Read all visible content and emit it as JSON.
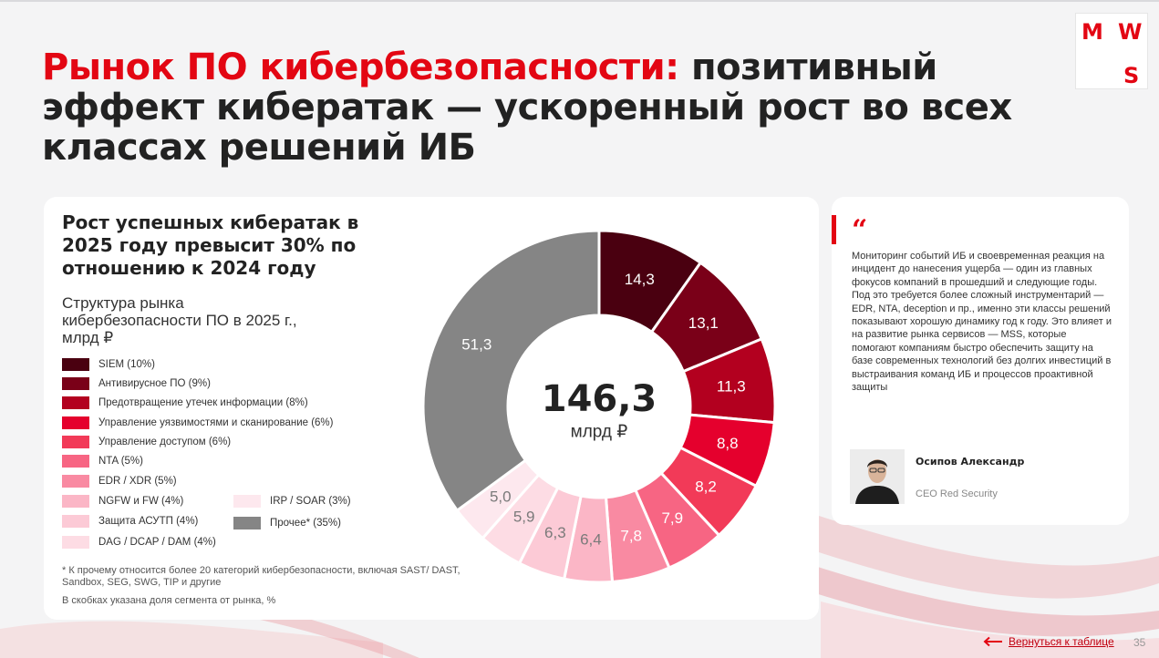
{
  "slide": {
    "title_accent": "Рынок ПО кибербезопасности:",
    "title_rest": " позитивный эффект кибератак — ускоренный рост во всех классах решений ИБ",
    "logo": {
      "letters": [
        "M",
        "W",
        "S"
      ]
    },
    "headline": "Рост успешных кибератак в 2025 году превысит 30% по отношению к 2024 году",
    "subhead": "Структура рынка кибербезопасности ПО в 2025 г., млрд ₽",
    "footnote": "* К прочему относится более 20 категорий кибербезопасности, включая SAST/ DAST, Sandbox, SEG, SWG, TIP и другие",
    "footnote2": "В скобках указана доля сегмента от рынка, %",
    "back_link": "Вернуться к таблице",
    "page_number": "35"
  },
  "quote": {
    "mark": "“",
    "text": "Мониторинг событий ИБ и своевременная реакция на инцидент до нанесения ущерба — один из главных фокусов компаний в прошедший и следующие годы. Под это требуется более сложный инструментарий — EDR, NTA, deception и пр., именно эти классы решений показывают хорошую динамику год к году. Это влияет и на развитие рынка сервисов — MSS, которые помогают компаниям быстро обеспечить защиту на базе современных технологий без долгих инвестиций в выстраивания команд ИБ и процессов проактивной защиты",
    "author_name": "Осипов Александр",
    "author_role": "CEO Red Security"
  },
  "chart_data": {
    "type": "pie",
    "variant": "donut",
    "center_value": "146,3",
    "center_unit": "млрд ₽",
    "unit": "млрд ₽",
    "categories": [
      "SIEM (10%)",
      "Антивирусное ПО (9%)",
      "Предотвращение утечек информации (8%)",
      "Управление уязвимостями и сканирование (6%)",
      "Управление доступом (6%)",
      "NTA (5%)",
      "EDR / XDR (5%)",
      "NGFW и FW (4%)",
      "Защита АСУТП (4%)",
      "DAG / DCAP / DAM (4%)",
      "IRP / SOAR (3%)",
      "Прочее* (35%)"
    ],
    "values": [
      14.3,
      13.1,
      11.3,
      8.8,
      8.2,
      7.9,
      7.8,
      6.4,
      6.3,
      5.9,
      5.0,
      51.3
    ],
    "labels": [
      "14,3",
      "13,1",
      "11,3",
      "8,8",
      "8,2",
      "7,9",
      "7,8",
      "6,4",
      "6,3",
      "5,9",
      "5,0",
      "51,3"
    ],
    "colors": [
      "#4a0010",
      "#7a0018",
      "#b3001f",
      "#e5002d",
      "#f23a58",
      "#f76583",
      "#f98aa2",
      "#fbb6c6",
      "#fccad6",
      "#fddce4",
      "#fde8ee",
      "#858585"
    ],
    "label_colors": [
      "#ffffff",
      "#ffffff",
      "#ffffff",
      "#ffffff",
      "#ffffff",
      "#ffffff",
      "#ffffff",
      "#7a7a7a",
      "#7a7a7a",
      "#7a7a7a",
      "#7a7a7a",
      "#ffffff"
    ],
    "legend_position": "left"
  }
}
